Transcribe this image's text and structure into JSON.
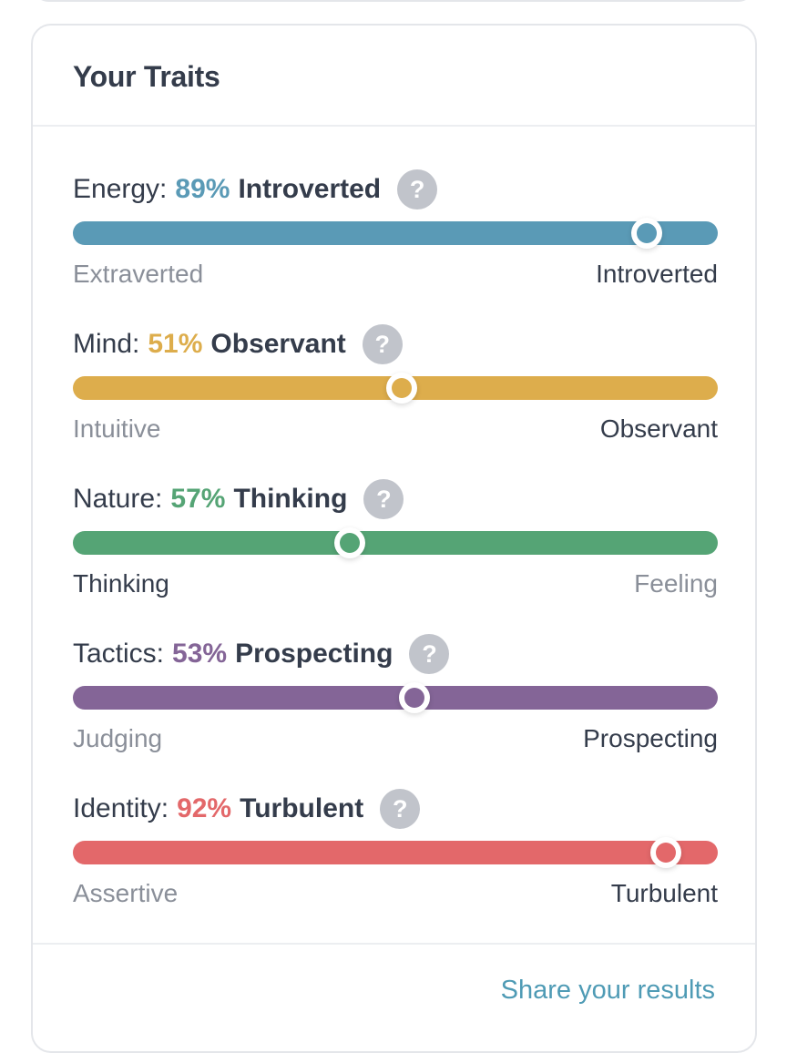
{
  "card": {
    "title": "Your Traits"
  },
  "traits": [
    {
      "label": "Energy:",
      "percent": "89%",
      "name": "Introverted",
      "value": 89,
      "help": "?",
      "color": "#5a9ab6",
      "left": "Extraverted",
      "right": "Introverted",
      "active_side": "right"
    },
    {
      "label": "Mind:",
      "percent": "51%",
      "name": "Observant",
      "value": 51,
      "help": "?",
      "color": "#ddad4c",
      "left": "Intuitive",
      "right": "Observant",
      "active_side": "right"
    },
    {
      "label": "Nature:",
      "percent": "57%",
      "name": "Thinking",
      "value": 57,
      "help": "?",
      "color": "#55a475",
      "left": "Thinking",
      "right": "Feeling",
      "active_side": "left"
    },
    {
      "label": "Tactics:",
      "percent": "53%",
      "name": "Prospecting",
      "value": 53,
      "help": "?",
      "color": "#846597",
      "left": "Judging",
      "right": "Prospecting",
      "active_side": "right"
    },
    {
      "label": "Identity:",
      "percent": "92%",
      "name": "Turbulent",
      "value": 92,
      "help": "?",
      "color": "#e3686a",
      "left": "Assertive",
      "right": "Turbulent",
      "active_side": "right"
    }
  ],
  "footer": {
    "share_label": "Share your results"
  },
  "colors": {
    "text": "#343c4b",
    "muted": "#8a8f99",
    "link": "#4f9bb5"
  }
}
